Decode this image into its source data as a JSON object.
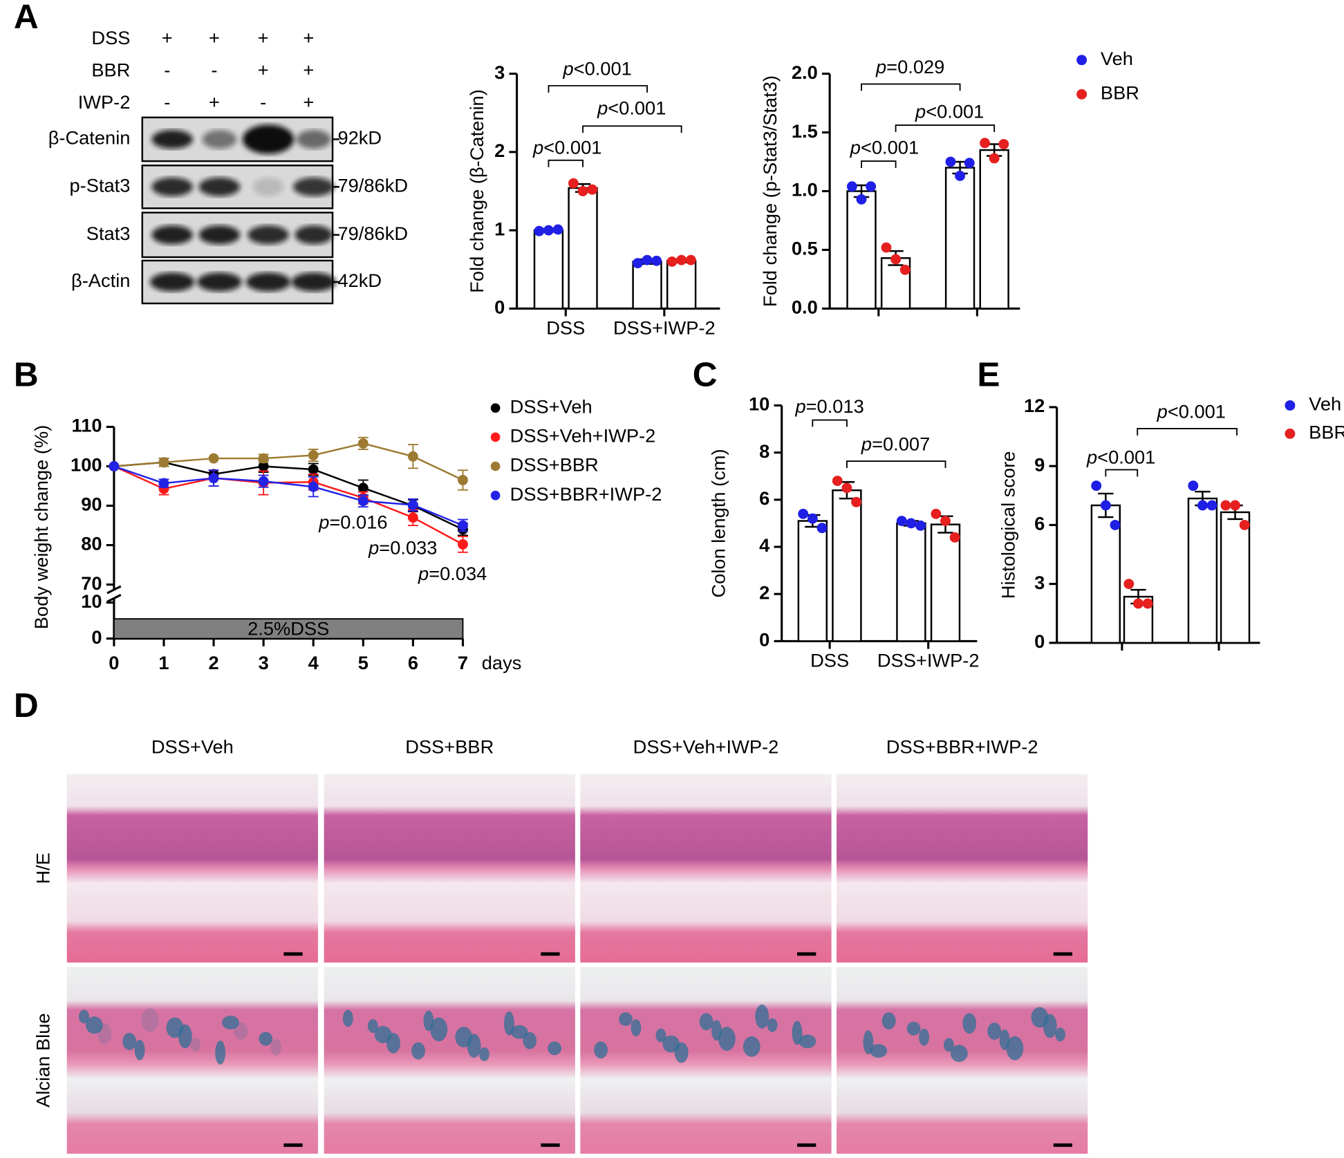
{
  "panel_labels": [
    "A",
    "B",
    "C",
    "D",
    "E"
  ],
  "blot": {
    "treatments": [
      {
        "label": "DSS",
        "signs": [
          "+",
          "+",
          "+",
          "+"
        ]
      },
      {
        "label": "BBR",
        "signs": [
          "-",
          "-",
          "+",
          "+"
        ]
      },
      {
        "label": "IWP-2",
        "signs": [
          "-",
          "+",
          "-",
          "+"
        ]
      }
    ],
    "proteins": [
      {
        "name": "β-Catenin",
        "size": "92kD"
      },
      {
        "name": "p-Stat3",
        "size": "79/86kD"
      },
      {
        "name": "Stat3",
        "size": "79/86kD"
      },
      {
        "name": "β-Actin",
        "size": "42kD"
      }
    ]
  },
  "chart_data": [
    {
      "type": "bar",
      "y_label": "Fold change (β-Catenin)",
      "categories": [
        "DSS",
        "DSS+IWP-2"
      ],
      "ylim": [
        0,
        3
      ],
      "yticks": [
        0,
        1,
        2,
        3
      ],
      "series": [
        {
          "color": "#1f1fe6",
          "values": [
            1.0,
            0.6
          ],
          "errors": [
            0.02,
            0.03
          ],
          "points": [
            [
              0.99,
              1.0,
              1.01
            ],
            [
              0.58,
              0.62,
              0.61
            ]
          ]
        },
        {
          "color": "#e61f1f",
          "values": [
            1.54,
            0.61
          ],
          "errors": [
            0.05,
            0.02
          ],
          "points": [
            [
              1.6,
              1.5,
              1.52
            ],
            [
              0.6,
              0.62,
              0.62
            ]
          ]
        }
      ],
      "annotations": [
        "p<0.001",
        "p<0.001",
        "p<0.001"
      ]
    },
    {
      "type": "bar",
      "y_label": "Fold change (p-Stat3/Stat3)",
      "categories": [
        null,
        null
      ],
      "ylim": [
        0,
        2
      ],
      "yticks": [
        {
          "value": 0,
          "label": "0.0"
        },
        {
          "value": 0.5,
          "label": "0.5"
        },
        {
          "value": 1,
          "label": "1.0"
        },
        {
          "value": 1.5,
          "label": "1.5"
        },
        {
          "value": 2,
          "label": "2.0"
        }
      ],
      "legend": "right",
      "series": [
        {
          "name": "Veh",
          "color": "#1f1fe6",
          "values": [
            1.0,
            1.2
          ],
          "errors": [
            0.05,
            0.05
          ],
          "points": [
            [
              1.04,
              0.93,
              1.04
            ],
            [
              1.25,
              1.13,
              1.24
            ]
          ]
        },
        {
          "name": "BBR",
          "color": "#e61f1f",
          "values": [
            0.43,
            1.35
          ],
          "errors": [
            0.06,
            0.05
          ],
          "points": [
            [
              0.52,
              0.42,
              0.33
            ],
            [
              1.41,
              1.28,
              1.4
            ]
          ]
        }
      ],
      "annotations": [
        "p=0.029",
        "p<0.001",
        "p<0.001"
      ]
    },
    {
      "type": "line",
      "y_label": "Body weight change (%)",
      "x_label": "days",
      "x": [
        0,
        1,
        2,
        3,
        4,
        5,
        6,
        7
      ],
      "xlim": [
        0,
        7
      ],
      "xticks": [
        0,
        1,
        2,
        3,
        4,
        5,
        6,
        7
      ],
      "ylim": [
        70,
        110
      ],
      "yticks": [
        70,
        80,
        90,
        100,
        110
      ],
      "ylim_lower": [
        0,
        10
      ],
      "yticks_lower": [
        0,
        10
      ],
      "band": {
        "label": "2.5%DSS",
        "x": [
          0,
          7
        ]
      },
      "series": [
        {
          "name": "DSS+Veh",
          "color": "#000000",
          "values": [
            100,
            101,
            98,
            100,
            99.2,
            94.5,
            90,
            84
          ],
          "errors": [
            0,
            1,
            1,
            1.5,
            1.5,
            2,
            1.5,
            1.5
          ]
        },
        {
          "name": "DSS+Veh+IWP-2",
          "color": "#ff1a1a",
          "values": [
            100,
            94.3,
            97,
            95.8,
            96,
            92,
            87,
            80.2
          ],
          "errors": [
            0,
            1.5,
            2,
            3,
            2,
            1.5,
            2,
            2
          ]
        },
        {
          "name": "DSS+BBR",
          "color": "#9c7a31",
          "values": [
            100,
            101,
            102,
            102,
            102.8,
            105.8,
            102.5,
            96.5
          ],
          "errors": [
            0,
            1,
            0,
            1,
            1.5,
            1.5,
            3,
            2.5
          ]
        },
        {
          "name": "DSS+BBR+IWP-2",
          "color": "#2323e6",
          "values": [
            100,
            95.7,
            97,
            96.2,
            94.8,
            91.2,
            90.2,
            85
          ],
          "errors": [
            0,
            1,
            2,
            1.5,
            2.5,
            1.5,
            1.5,
            1.5
          ]
        }
      ],
      "annotations": [
        "p=0.016",
        "p=0.033",
        "p=0.034"
      ]
    },
    {
      "type": "bar",
      "y_label": "Colon length (cm)",
      "categories": [
        "DSS",
        "DSS+IWP-2"
      ],
      "ylim": [
        0,
        10
      ],
      "yticks": [
        0,
        2,
        4,
        6,
        8,
        10
      ],
      "series": [
        {
          "color": "#1f1fe6",
          "values": [
            5.1,
            5.0
          ],
          "errors": [
            0.25,
            0.1
          ],
          "points": [
            [
              5.4,
              5.2,
              4.8
            ],
            [
              5.1,
              5.0,
              4.9
            ]
          ]
        },
        {
          "color": "#e61f1f",
          "values": [
            6.4,
            4.95
          ],
          "errors": [
            0.35,
            0.35
          ],
          "points": [
            [
              6.8,
              6.5,
              5.9
            ],
            [
              5.4,
              5.1,
              4.4
            ]
          ]
        }
      ],
      "annotations": [
        "p=0.013",
        "p=0.007"
      ]
    },
    {
      "type": "bar",
      "y_label": "Histological score",
      "categories": [
        null,
        null
      ],
      "ylim": [
        0,
        12
      ],
      "yticks": [
        0,
        3,
        6,
        9,
        12
      ],
      "legend": "right",
      "series": [
        {
          "name": "Veh",
          "color": "#1f1fe6",
          "values": [
            7.0,
            7.35
          ],
          "errors": [
            0.6,
            0.35
          ],
          "points": [
            [
              8,
              7,
              6
            ],
            [
              8,
              7,
              7
            ]
          ]
        },
        {
          "name": "BBR",
          "color": "#e61f1f",
          "values": [
            2.35,
            6.65
          ],
          "errors": [
            0.35,
            0.35
          ],
          "points": [
            [
              3,
              2,
              2
            ],
            [
              7,
              7,
              6
            ]
          ]
        }
      ],
      "annotations": [
        "p<0.001",
        "p<0.001"
      ]
    }
  ],
  "histology": {
    "columns": [
      "DSS+Veh",
      "DSS+BBR",
      "DSS+Veh+IWP-2",
      "DSS+BBR+IWP-2"
    ],
    "rows": [
      "H/E",
      "Alcian Blue"
    ]
  }
}
